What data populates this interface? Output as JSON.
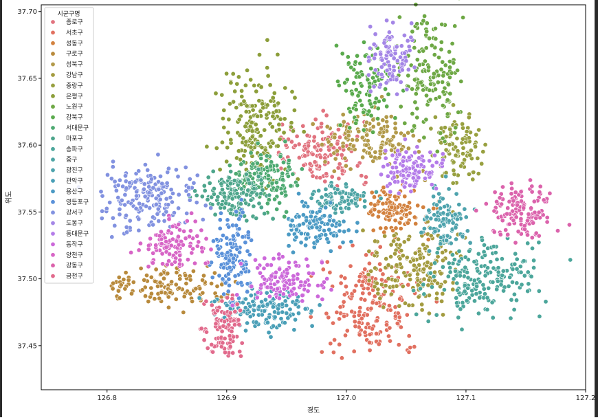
{
  "chart_data": {
    "type": "scatter",
    "title": "",
    "xlabel": "경도",
    "ylabel": "위도",
    "xlim": [
      126.745,
      127.2
    ],
    "ylim": [
      37.417,
      37.705
    ],
    "x_ticks": [
      "126.8",
      "126.9",
      "127.0",
      "127.1",
      "127.2"
    ],
    "x_tick_values": [
      126.8,
      126.9,
      127.0,
      127.1,
      127.2
    ],
    "y_ticks": [
      "37.45",
      "37.50",
      "37.55",
      "37.60",
      "37.65",
      "37.70"
    ],
    "y_tick_values": [
      37.45,
      37.5,
      37.55,
      37.6,
      37.65,
      37.7
    ],
    "legend": {
      "title": "시군구명",
      "placement": "top-left",
      "entries": [
        "종로구",
        "서초구",
        "성동구",
        "구로구",
        "성북구",
        "강남구",
        "중랑구",
        "은평구",
        "노원구",
        "강북구",
        "서대문구",
        "마포구",
        "송파구",
        "중구",
        "광진구",
        "관악구",
        "용산구",
        "영등포구",
        "강서구",
        "도봉구",
        "동대문구",
        "동작구",
        "양천구",
        "강동구",
        "금천구"
      ]
    },
    "series": [
      {
        "name": "종로구",
        "color": "#e1737f",
        "center": [
          126.978,
          37.595
        ],
        "spread": [
          0.025,
          0.018
        ],
        "n": 140
      },
      {
        "name": "서초구",
        "color": "#e17060",
        "center": [
          127.022,
          37.483
        ],
        "spread": [
          0.03,
          0.026
        ],
        "n": 200
      },
      {
        "name": "성동구",
        "color": "#d2813e",
        "center": [
          127.041,
          37.551
        ],
        "spread": [
          0.018,
          0.012
        ],
        "n": 110
      },
      {
        "name": "구로구",
        "color": "#b88a3c",
        "center": [
          126.853,
          37.496
        ],
        "spread": [
          0.035,
          0.01
        ],
        "n": 130
      },
      {
        "name": "성북구",
        "color": "#b29a4a",
        "center": [
          127.018,
          37.603
        ],
        "spread": [
          0.028,
          0.016
        ],
        "n": 140
      },
      {
        "name": "강남구",
        "color": "#a39b3f",
        "center": [
          127.058,
          37.508
        ],
        "spread": [
          0.028,
          0.022
        ],
        "n": 180
      },
      {
        "name": "중랑구",
        "color": "#98a040",
        "center": [
          127.093,
          37.6
        ],
        "spread": [
          0.015,
          0.018
        ],
        "n": 100
      },
      {
        "name": "은평구",
        "color": "#8c9e3a",
        "center": [
          126.926,
          37.615
        ],
        "spread": [
          0.022,
          0.032
        ],
        "n": 190
      },
      {
        "name": "노원구",
        "color": "#6ea845",
        "center": [
          127.071,
          37.65
        ],
        "spread": [
          0.018,
          0.03
        ],
        "n": 160
      },
      {
        "name": "강북구",
        "color": "#5aaa4d",
        "center": [
          127.017,
          37.644
        ],
        "spread": [
          0.016,
          0.022
        ],
        "n": 110
      },
      {
        "name": "서대문구",
        "color": "#4eaa72",
        "center": [
          126.934,
          37.575
        ],
        "spread": [
          0.02,
          0.015
        ],
        "n": 140
      },
      {
        "name": "마포구",
        "color": "#4ea68c",
        "center": [
          126.908,
          37.563
        ],
        "spread": [
          0.02,
          0.013
        ],
        "n": 150
      },
      {
        "name": "송파구",
        "color": "#4ca69b",
        "center": [
          127.113,
          37.502
        ],
        "spread": [
          0.035,
          0.02
        ],
        "n": 200
      },
      {
        "name": "중구",
        "color": "#4da4a4",
        "center": [
          126.996,
          37.56
        ],
        "spread": [
          0.018,
          0.008
        ],
        "n": 80
      },
      {
        "name": "광진구",
        "color": "#4ea3ad",
        "center": [
          127.085,
          37.543
        ],
        "spread": [
          0.014,
          0.017
        ],
        "n": 100
      },
      {
        "name": "관악구",
        "color": "#4a9fb7",
        "center": [
          126.932,
          37.477
        ],
        "spread": [
          0.03,
          0.012
        ],
        "n": 150
      },
      {
        "name": "용산구",
        "color": "#4b9ac4",
        "center": [
          126.974,
          37.54
        ],
        "spread": [
          0.02,
          0.012
        ],
        "n": 110
      },
      {
        "name": "영등포구",
        "color": "#5a91d9",
        "center": [
          126.906,
          37.517
        ],
        "spread": [
          0.012,
          0.022
        ],
        "n": 130
      },
      {
        "name": "강서구",
        "color": "#8292e0",
        "center": [
          126.834,
          37.561
        ],
        "spread": [
          0.03,
          0.017
        ],
        "n": 190
      },
      {
        "name": "도봉구",
        "color": "#a486e6",
        "center": [
          127.038,
          37.665
        ],
        "spread": [
          0.013,
          0.018
        ],
        "n": 100
      },
      {
        "name": "동대문구",
        "color": "#b47ce9",
        "center": [
          127.054,
          37.582
        ],
        "spread": [
          0.018,
          0.012
        ],
        "n": 110
      },
      {
        "name": "동작구",
        "color": "#cc68da",
        "center": [
          126.95,
          37.5
        ],
        "spread": [
          0.025,
          0.012
        ],
        "n": 120
      },
      {
        "name": "양천구",
        "color": "#d765c6",
        "center": [
          126.858,
          37.526
        ],
        "spread": [
          0.018,
          0.012
        ],
        "n": 110
      },
      {
        "name": "강동구",
        "color": "#db63ac",
        "center": [
          127.145,
          37.55
        ],
        "spread": [
          0.02,
          0.014
        ],
        "n": 130
      },
      {
        "name": "금천구",
        "color": "#e16a8c",
        "center": [
          126.898,
          37.463
        ],
        "spread": [
          0.012,
          0.015
        ],
        "n": 100
      }
    ]
  }
}
